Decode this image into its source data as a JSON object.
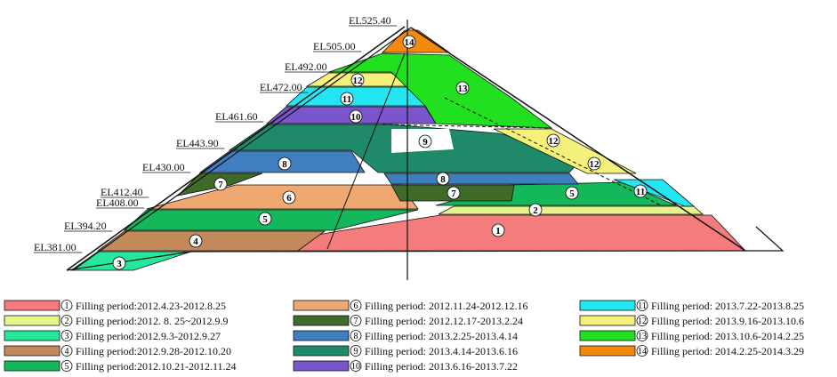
{
  "elevations": [
    "EL525.40",
    "EL505.00",
    "EL492.00",
    "EL472.00",
    "EL461.60",
    "EL443.90",
    "EL430.00",
    "EL412.40",
    "EL408.00",
    "EL394.20",
    "EL381.00"
  ],
  "zones": [
    {
      "id": "1",
      "color": "#f47c7c",
      "period": "Filling period:2012.4.23-2012.8.25"
    },
    {
      "id": "2",
      "color": "#e6f58a",
      "period": "Filling period:2012. 8. 25~2012.9.9"
    },
    {
      "id": "3",
      "color": "#25e89a",
      "period": "Filling period:2012.9.3-2012.9.27"
    },
    {
      "id": "4",
      "color": "#c48a5c",
      "period": "Filling period:2012.9.28-2012.10.20"
    },
    {
      "id": "5",
      "color": "#14b85a",
      "period": "Filling period:2012.10.21-2012.11.24"
    },
    {
      "id": "6",
      "color": "#eea870",
      "period": "Filling period: 2012.11.24-2012.12.16"
    },
    {
      "id": "7",
      "color": "#3f6b2a",
      "period": "Filling period: 2012.12.17-2013.2.24"
    },
    {
      "id": "8",
      "color": "#3f7fc0",
      "period": "Filling period: 2013.2.25-2013.4.14"
    },
    {
      "id": "9",
      "color": "#1f8a6a",
      "period": "Filling period: 2013.4.14-2013.6.16"
    },
    {
      "id": "10",
      "color": "#7b55cc",
      "period": "Filling period: 2013.6.16-2013.7.22"
    },
    {
      "id": "11",
      "color": "#22e6f2",
      "period": "Filling period: 2013.7.22-2013.8.25"
    },
    {
      "id": "12",
      "color": "#f5f07a",
      "period": "Filling period: 2013.9.16-2013.10.6"
    },
    {
      "id": "13",
      "color": "#20e020",
      "period": "Filling period: 2013.10.6-2014.2.25"
    },
    {
      "id": "14",
      "color": "#f58a0a",
      "period": "Filling period: 2014.2.25-2014.3.29"
    }
  ]
}
